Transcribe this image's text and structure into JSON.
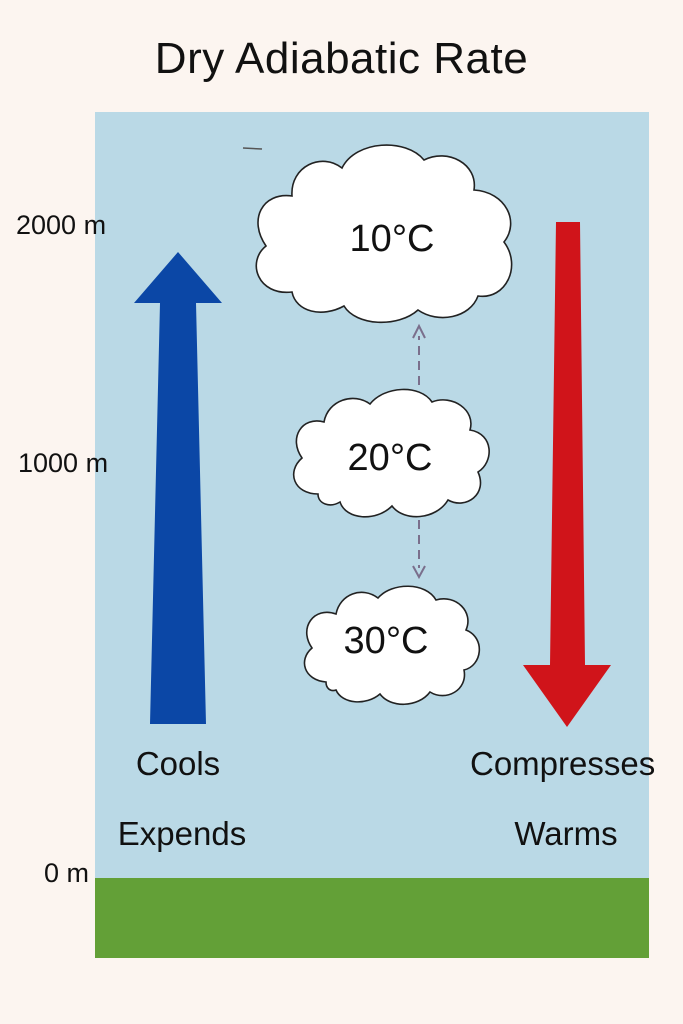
{
  "title": "Dry Adiabatic Rate",
  "altitudes": {
    "top": "2000 m",
    "middle": "1000 m",
    "bottom": "0 m"
  },
  "clouds": {
    "upper": "10°C",
    "middle": "20°C",
    "lower": "30°C"
  },
  "rising_side": {
    "label_1": "Cools",
    "label_2": "Expends",
    "arrow_color": "#0b47a6",
    "direction": "up"
  },
  "sinking_side": {
    "label_1": "Compresses",
    "label_2": "Warms",
    "arrow_color": "#d0141a",
    "direction": "down"
  },
  "colors": {
    "background": "#fcf5f0",
    "sky": "#bad9e6",
    "ground": "#63a037",
    "cloud_fill": "#ffffff",
    "connector": "#7a6f8c"
  }
}
